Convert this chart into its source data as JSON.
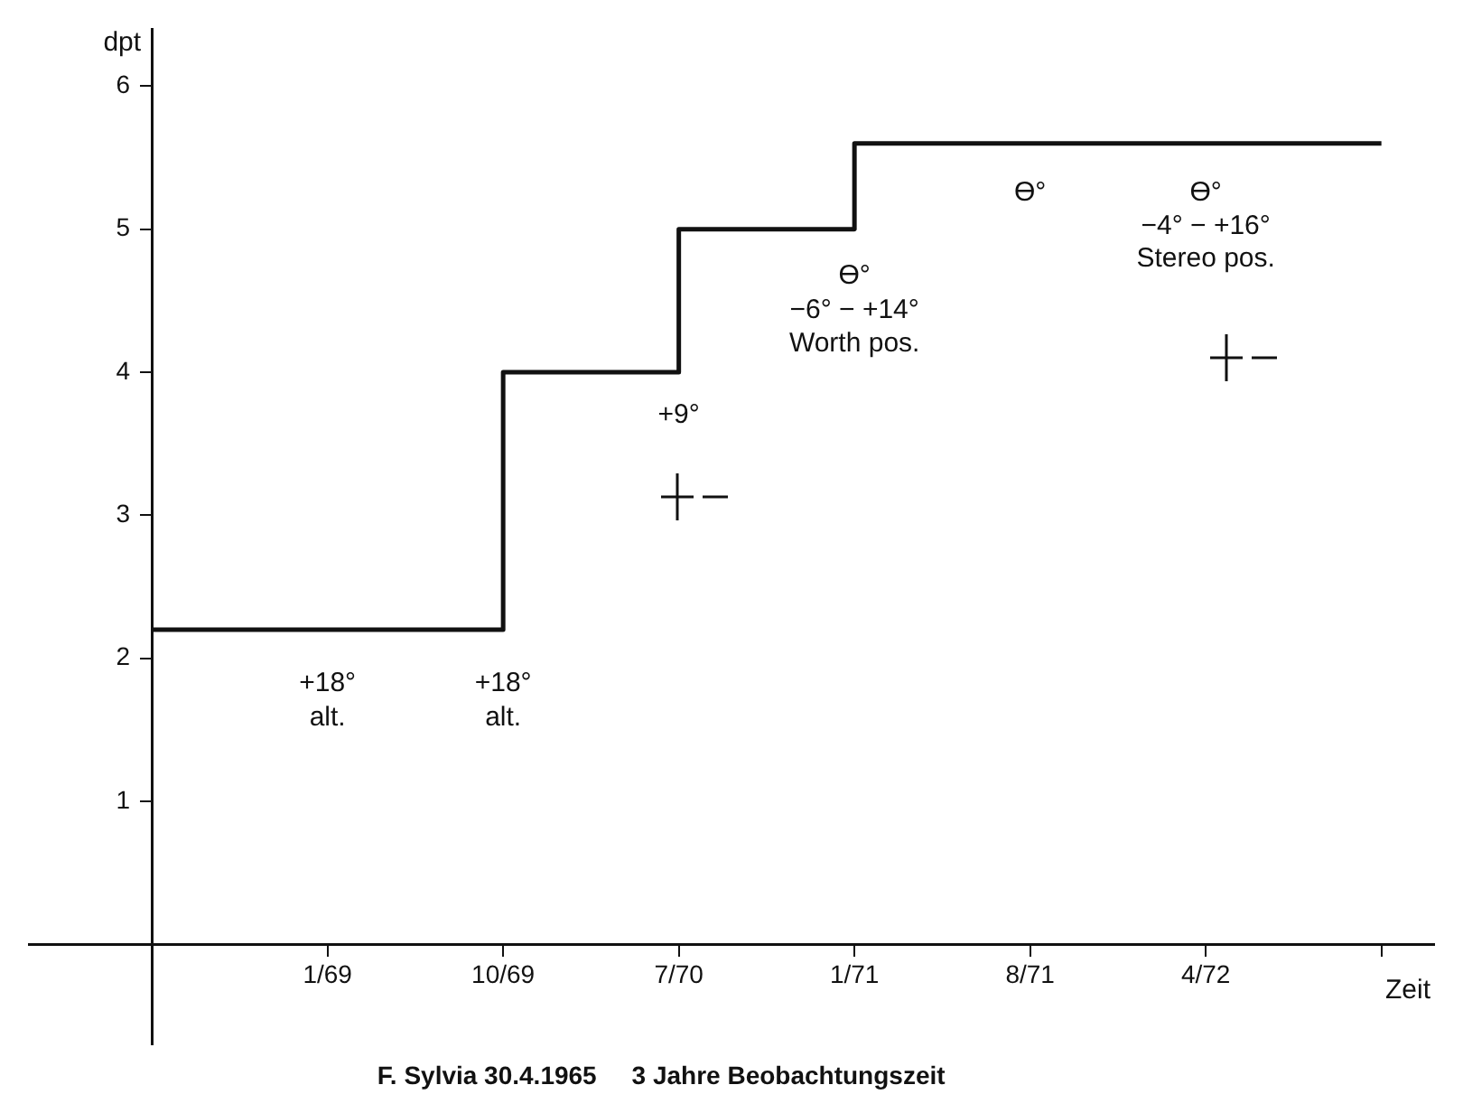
{
  "chart_data": {
    "type": "step",
    "xlabel": "Zeit",
    "ylabel": "dpt",
    "categories": [
      null,
      "1/69",
      "10/69",
      "7/70",
      "1/71",
      "8/71",
      "4/72",
      null
    ],
    "ylim": [
      -0.7,
      6.4
    ],
    "yticks": [
      1,
      2,
      3,
      4,
      5,
      6
    ],
    "series": [
      {
        "color": "#111111",
        "values": [
          2.2,
          2.2,
          4.0,
          5.0,
          5.6,
          5.6,
          5.6,
          5.6
        ]
      }
    ],
    "grid": false,
    "legend": false,
    "marker": "none",
    "line_style": "solid",
    "annotations": [
      "+18°",
      "alt.",
      "+18°",
      "alt.",
      "+9°",
      "Ɵ°",
      "−6° − +14°",
      "Worth pos.",
      "Ɵ°",
      "Ɵ°",
      "−4° − +16°",
      "Stereo pos.",
      "F. Sylvia 30.4.1965     3 Jahre Beobachtungszeit"
    ]
  }
}
